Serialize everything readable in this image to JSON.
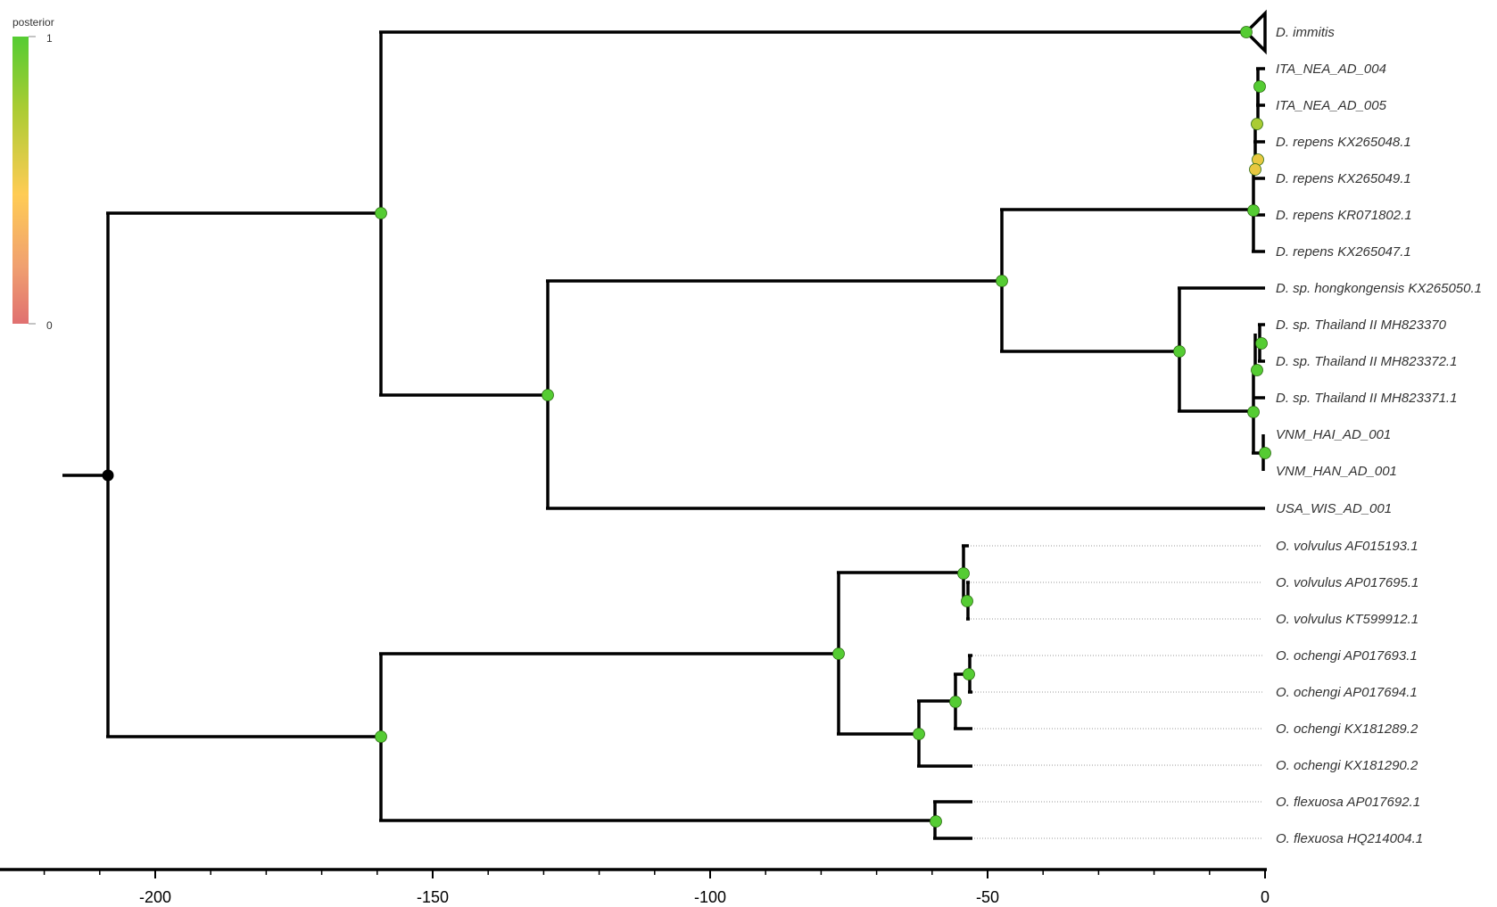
{
  "legend": {
    "title": "posterior",
    "max_label": "1",
    "min_label": "0",
    "colors": [
      "#55cc33",
      "#aacc33",
      "#ffcc55",
      "#f0a070",
      "#e07070"
    ]
  },
  "axis": {
    "ticks": [
      {
        "value": -200,
        "label": "-200"
      },
      {
        "value": -150,
        "label": "-150"
      },
      {
        "value": -100,
        "label": "-100"
      },
      {
        "value": -50,
        "label": "-50"
      },
      {
        "value": 0,
        "label": "0"
      }
    ]
  },
  "tips": [
    {
      "label": "D. immitis",
      "collapsed": true
    },
    {
      "label": "ITA_NEA_AD_004"
    },
    {
      "label": "ITA_NEA_AD_005"
    },
    {
      "label": "D. repens KX265048.1"
    },
    {
      "label": "D. repens KX265049.1"
    },
    {
      "label": "D. repens KR071802.1"
    },
    {
      "label": "D. repens KX265047.1"
    },
    {
      "label": "D. sp. hongkongensis KX265050.1"
    },
    {
      "label": "D. sp. Thailand II MH823370"
    },
    {
      "label": "D. sp. Thailand II MH823372.1"
    },
    {
      "label": "D. sp. Thailand II MH823371.1"
    },
    {
      "label": "VNM_HAI_AD_001"
    },
    {
      "label": "VNM_HAN_AD_001"
    },
    {
      "label": "USA_WIS_AD_001"
    },
    {
      "label": "O. volvulus AF015193.1"
    },
    {
      "label": "O. volvulus AP017695.1"
    },
    {
      "label": "O. volvulus KT599912.1"
    },
    {
      "label": "O. ochengi AP017693.1"
    },
    {
      "label": "O. ochengi AP017694.1"
    },
    {
      "label": "O. ochengi KX181289.2"
    },
    {
      "label": "O. ochengi KX181290.2"
    },
    {
      "label": "O. flexuosa AP017692.1"
    },
    {
      "label": "O. flexuosa HQ214004.1"
    }
  ]
}
